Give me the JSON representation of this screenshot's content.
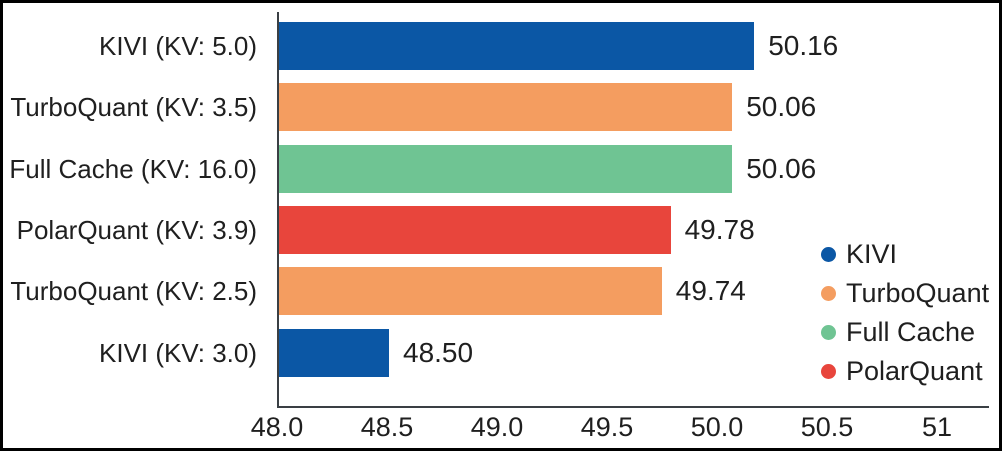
{
  "chart_data": {
    "type": "bar",
    "orientation": "horizontal",
    "title": "",
    "xlabel": "",
    "ylabel": "",
    "grid": false,
    "xlim": [
      48,
      51.2
    ],
    "categories": [
      "KIVI (KV: 5.0)",
      "TurboQuant (KV: 3.5)",
      "Full Cache (KV: 16.0)",
      "PolarQuant (KV: 3.9)",
      "TurboQuant (KV: 2.5)",
      "KIVI (KV: 3.0)"
    ],
    "values": [
      50.16,
      50.06,
      50.06,
      49.78,
      49.74,
      48.5
    ],
    "value_labels": [
      "50.16",
      "50.06",
      "50.06",
      "49.78",
      "49.74",
      "48.50"
    ],
    "bar_series": [
      "KIVI",
      "TurboQuant",
      "Full Cache",
      "PolarQuant",
      "TurboQuant",
      "KIVI"
    ],
    "series_colors": {
      "KIVI": "#0b57a5",
      "TurboQuant": "#f49d60",
      "Full Cache": "#6fc493",
      "PolarQuant": "#e8453c"
    },
    "x_ticks": [
      "48.0",
      "48.5",
      "49.0",
      "49.5",
      "50.0",
      "50.5",
      "51"
    ],
    "legend": {
      "position": "right",
      "entries": [
        {
          "label": "KIVI",
          "color": "#0b57a5"
        },
        {
          "label": "TurboQuant",
          "color": "#f49d60"
        },
        {
          "label": "Full Cache",
          "color": "#6fc493"
        },
        {
          "label": "PolarQuant",
          "color": "#e8453c"
        }
      ]
    }
  },
  "colors": {
    "background": "#ffffff",
    "frame_border": "#000000",
    "spine": "#3a3f44",
    "text": "#1f1f1f"
  }
}
